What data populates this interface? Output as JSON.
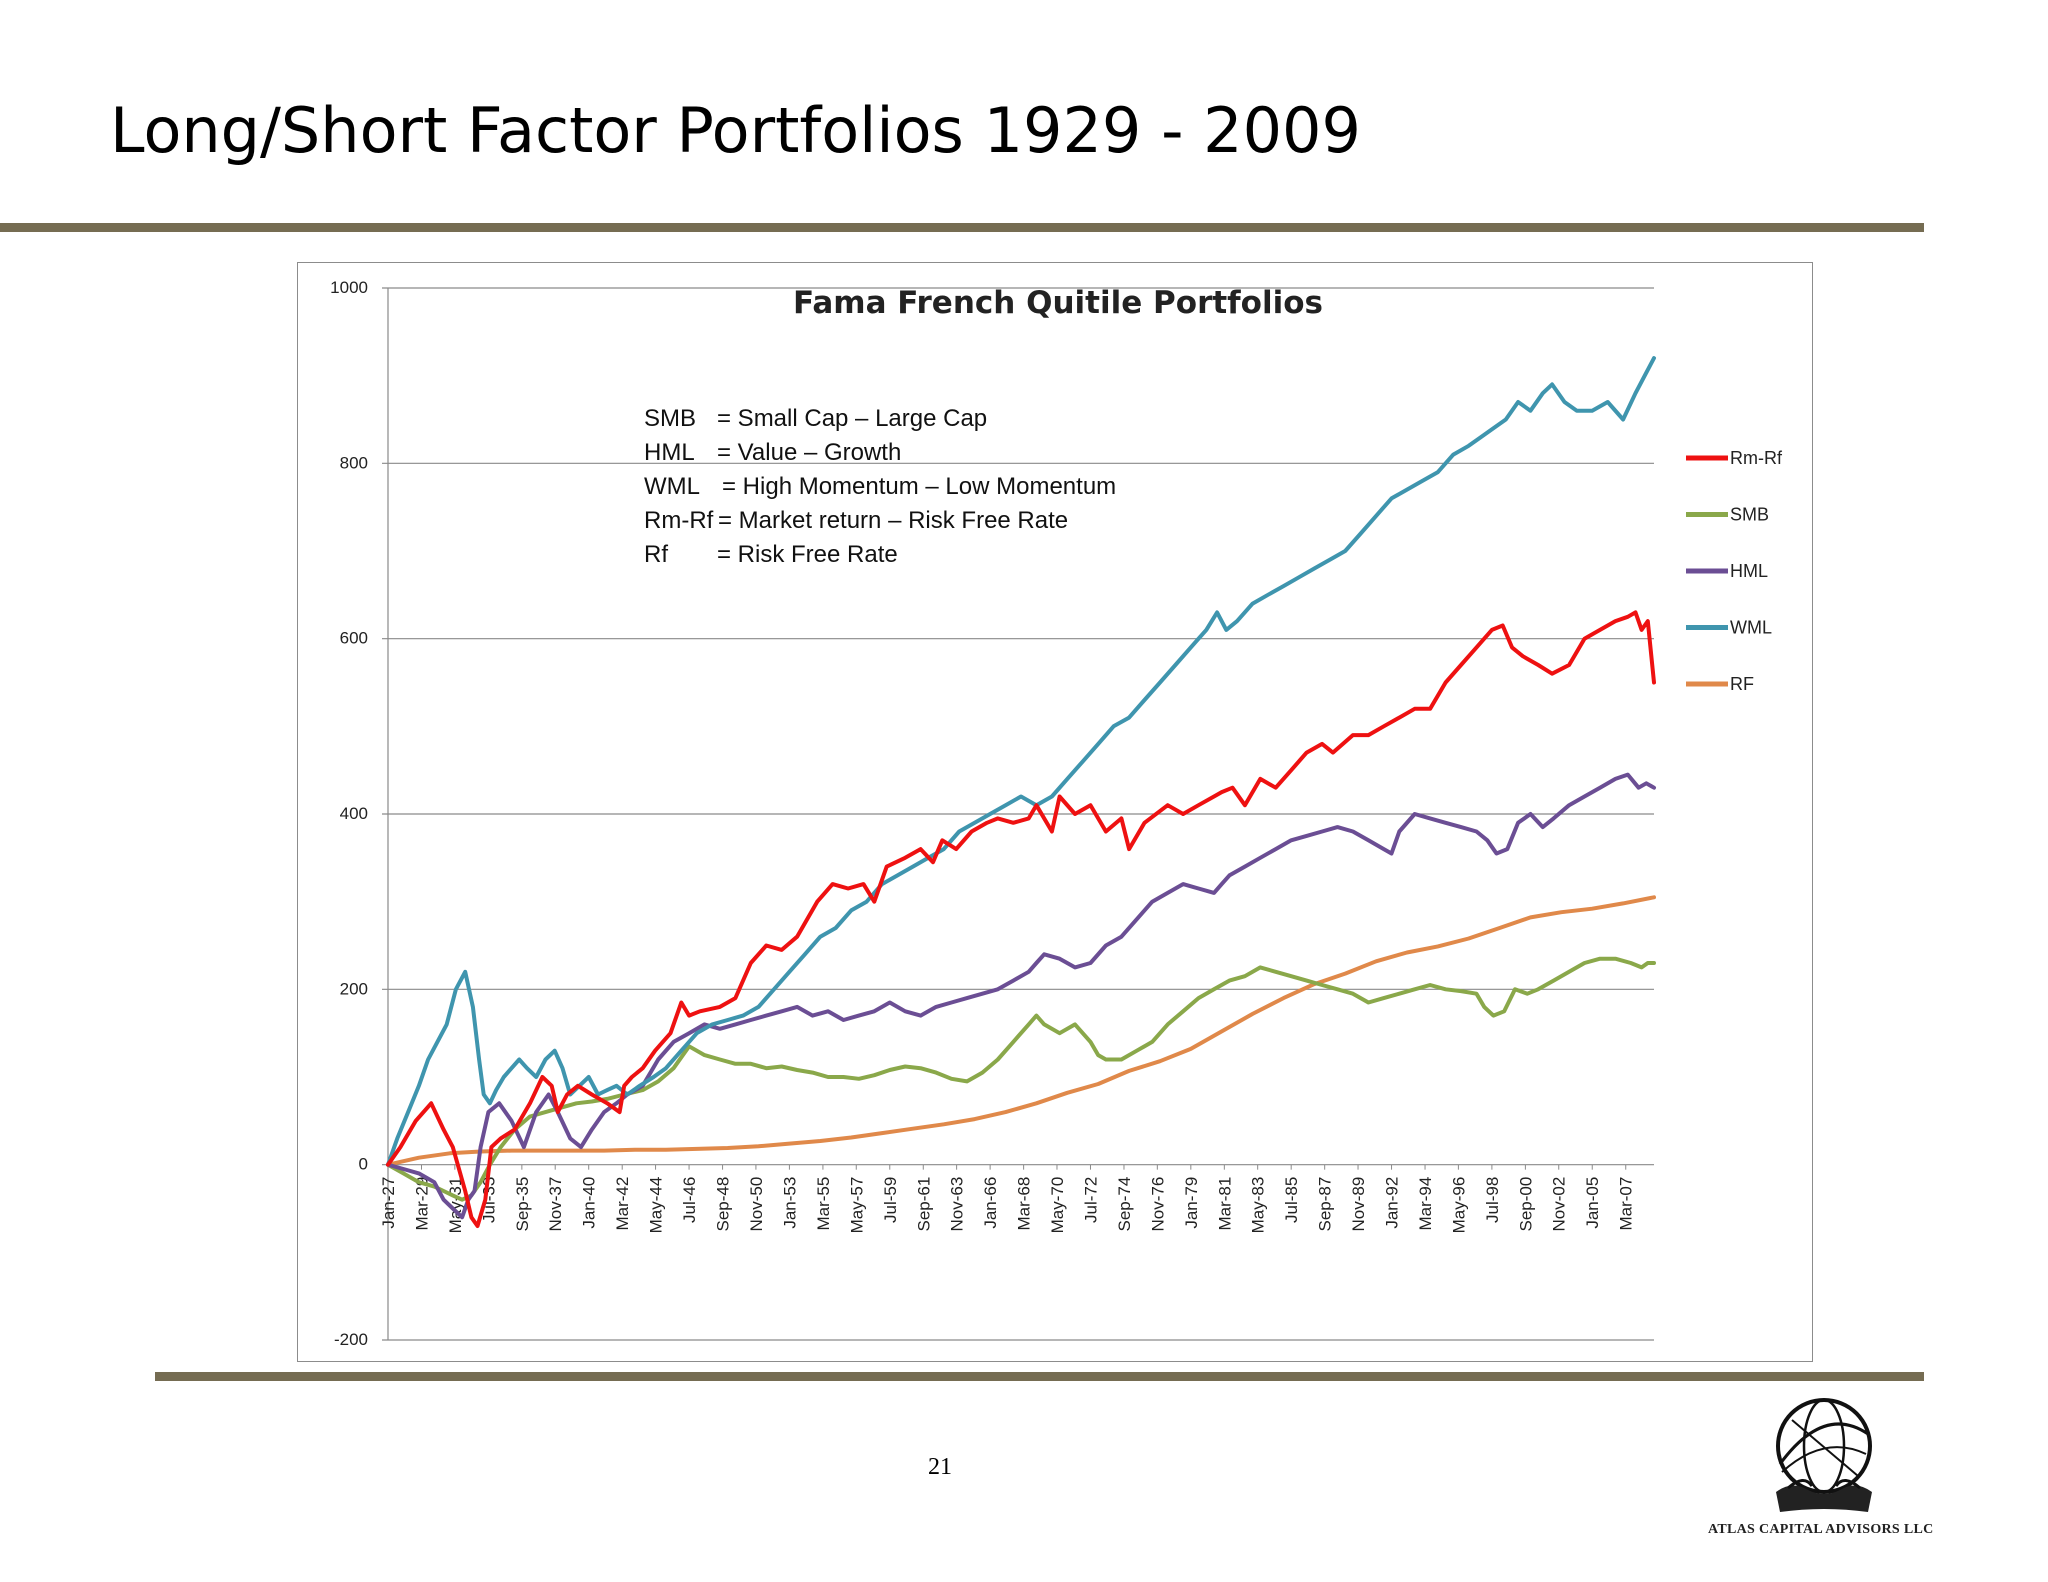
{
  "slide": {
    "title": "Long/Short Factor Portfolios 1929 - 2009",
    "page_number": "21",
    "company": "ATLAS CAPITAL ADVISORS LLC"
  },
  "colors": {
    "rule": "#756c52",
    "rm_rf": "#ee1111",
    "smb": "#8aa84a",
    "hml": "#6b4e94",
    "wml": "#3f95ae",
    "rf": "#e0894a"
  },
  "icons": {
    "logo": "globe-atlas-icon"
  },
  "chart_data": {
    "type": "line",
    "title": "Fama French Quitile Portfolios",
    "xlabel": "",
    "ylabel": "",
    "ylim": [
      -200,
      1000
    ],
    "yticks": [
      -200,
      0,
      200,
      400,
      600,
      800,
      1000
    ],
    "grid": true,
    "legend_position": "right",
    "definitions": [
      {
        "term": "SMB",
        "meaning": "= Small Cap – Large Cap"
      },
      {
        "term": "HML",
        "meaning": "= Value – Growth"
      },
      {
        "term": "WML",
        "meaning": "= High Momentum – Low Momentum"
      },
      {
        "term": "Rm-Rf",
        "meaning": "= Market return – Risk Free Rate"
      },
      {
        "term": "Rf",
        "meaning": "= Risk Free Rate"
      }
    ],
    "categories": [
      "Jan-27",
      "Mar-29",
      "May-31",
      "Jul-33",
      "Sep-35",
      "Nov-37",
      "Jan-40",
      "Mar-42",
      "May-44",
      "Jul-46",
      "Sep-48",
      "Nov-50",
      "Jan-53",
      "Mar-55",
      "May-57",
      "Jul-59",
      "Sep-61",
      "Nov-63",
      "Jan-66",
      "Mar-68",
      "May-70",
      "Jul-72",
      "Sep-74",
      "Nov-76",
      "Jan-79",
      "Mar-81",
      "May-83",
      "Jul-85",
      "Sep-87",
      "Nov-89",
      "Jan-92",
      "Mar-94",
      "May-96",
      "Jul-98",
      "Sep-00",
      "Nov-02",
      "Jan-05",
      "Mar-07"
    ],
    "x": [
      1927.0,
      1929.17,
      1931.33,
      1933.5,
      1935.67,
      1937.83,
      1940.0,
      1942.17,
      1944.33,
      1946.5,
      1948.67,
      1950.83,
      1953.0,
      1955.17,
      1957.33,
      1959.5,
      1961.67,
      1963.83,
      1966.0,
      1968.17,
      1970.33,
      1972.5,
      1974.67,
      1976.83,
      1979.0,
      1981.17,
      1983.33,
      1985.5,
      1987.67,
      1989.83,
      1992.0,
      1994.17,
      1996.33,
      1998.5,
      2000.67,
      2002.83,
      2005.0,
      2007.17
    ],
    "series": [
      {
        "name": "Rm-Rf",
        "x": [
          1927.0,
          1927.8,
          1928.8,
          1929.8,
          1930.6,
          1931.2,
          1932.0,
          1932.4,
          1932.8,
          1933.3,
          1933.7,
          1934.3,
          1935.2,
          1936.2,
          1937.0,
          1937.6,
          1938.0,
          1938.6,
          1939.3,
          1940.2,
          1941.2,
          1942.0,
          1942.3,
          1942.8,
          1943.5,
          1944.3,
          1945.3,
          1946.0,
          1946.5,
          1947.2,
          1948.5,
          1949.5,
          1950.5,
          1951.5,
          1952.5,
          1953.5,
          1954.8,
          1955.8,
          1956.8,
          1957.8,
          1958.5,
          1959.3,
          1960.5,
          1961.5,
          1962.3,
          1962.9,
          1963.8,
          1964.8,
          1965.8,
          1966.5,
          1967.5,
          1968.5,
          1969.0,
          1970.0,
          1970.5,
          1971.5,
          1972.5,
          1973.5,
          1974.5,
          1975.0,
          1976.0,
          1977.5,
          1978.5,
          1979.5,
          1980.5,
          1981.0,
          1981.7,
          1982.5,
          1983.5,
          1984.5,
          1985.5,
          1986.5,
          1987.5,
          1988.2,
          1989.5,
          1990.5,
          1991.5,
          1992.5,
          1993.5,
          1994.5,
          1995.5,
          1996.5,
          1997.5,
          1998.5,
          1999.2,
          1999.8,
          2000.5,
          2001.5,
          2002.4,
          2003.5,
          2004.5,
          2005.5,
          2006.5,
          2007.3,
          2007.8,
          2008.2,
          2008.6,
          2009.0
        ],
        "values": [
          0,
          20,
          50,
          70,
          40,
          20,
          -30,
          -60,
          -70,
          -40,
          20,
          30,
          40,
          70,
          100,
          90,
          60,
          80,
          90,
          80,
          70,
          60,
          90,
          100,
          110,
          130,
          150,
          185,
          170,
          175,
          180,
          190,
          230,
          250,
          245,
          260,
          300,
          320,
          315,
          320,
          300,
          340,
          350,
          360,
          345,
          370,
          360,
          380,
          390,
          395,
          390,
          395,
          410,
          380,
          420,
          400,
          410,
          380,
          395,
          360,
          390,
          410,
          400,
          410,
          420,
          425,
          430,
          410,
          440,
          430,
          450,
          470,
          480,
          470,
          490,
          490,
          500,
          510,
          520,
          520,
          550,
          570,
          590,
          610,
          615,
          590,
          580,
          570,
          560,
          570,
          600,
          610,
          620,
          625,
          630,
          610,
          620,
          550
        ]
      },
      {
        "name": "SMB",
        "x": [
          1927.0,
          1928.0,
          1929.0,
          1930.0,
          1930.6,
          1931.2,
          1931.8,
          1932.4,
          1933.0,
          1933.6,
          1934.3,
          1935.2,
          1936.2,
          1937.2,
          1938.2,
          1939.2,
          1940.2,
          1941.2,
          1942.3,
          1943.5,
          1944.5,
          1945.5,
          1946.5,
          1947.5,
          1948.5,
          1949.5,
          1950.5,
          1951.5,
          1952.5,
          1953.5,
          1954.5,
          1955.5,
          1956.5,
          1957.5,
          1958.5,
          1959.5,
          1960.5,
          1961.5,
          1962.5,
          1963.5,
          1964.5,
          1965.5,
          1966.5,
          1967.5,
          1968.5,
          1969.0,
          1969.5,
          1970.5,
          1971.5,
          1972.5,
          1973.0,
          1973.5,
          1974.5,
          1975.5,
          1976.5,
          1977.5,
          1978.5,
          1979.5,
          1980.5,
          1981.5,
          1982.5,
          1983.5,
          1984.5,
          1985.5,
          1986.5,
          1987.5,
          1988.5,
          1989.5,
          1990.5,
          1991.5,
          1992.5,
          1993.5,
          1994.5,
          1995.5,
          1996.5,
          1997.5,
          1998.0,
          1998.6,
          1999.3,
          2000.0,
          2000.8,
          2001.5,
          2002.5,
          2003.5,
          2004.5,
          2005.5,
          2006.5,
          2007.5,
          2008.2,
          2008.6,
          2009.0
        ],
        "values": [
          0,
          -10,
          -20,
          -25,
          -30,
          -35,
          -40,
          -35,
          -20,
          0,
          20,
          40,
          55,
          60,
          65,
          70,
          72,
          75,
          80,
          85,
          95,
          110,
          135,
          125,
          120,
          115,
          115,
          110,
          112,
          108,
          105,
          100,
          100,
          98,
          102,
          108,
          112,
          110,
          105,
          98,
          95,
          105,
          120,
          140,
          160,
          170,
          160,
          150,
          160,
          140,
          125,
          120,
          120,
          130,
          140,
          160,
          175,
          190,
          200,
          210,
          215,
          225,
          220,
          215,
          210,
          205,
          200,
          195,
          185,
          190,
          195,
          200,
          205,
          200,
          198,
          195,
          180,
          170,
          175,
          200,
          195,
          200,
          210,
          220,
          230,
          235,
          235,
          230,
          225,
          230,
          230
        ]
      },
      {
        "name": "HML",
        "x": [
          1927.0,
          1928.0,
          1929.0,
          1930.0,
          1930.6,
          1931.2,
          1931.8,
          1932.2,
          1932.6,
          1933.0,
          1933.5,
          1934.2,
          1935.0,
          1935.8,
          1936.6,
          1937.4,
          1938.0,
          1938.8,
          1939.5,
          1940.2,
          1941.0,
          1941.8,
          1942.5,
          1943.5,
          1944.5,
          1945.5,
          1946.5,
          1947.5,
          1948.5,
          1949.5,
          1950.5,
          1951.5,
          1952.5,
          1953.5,
          1954.5,
          1955.5,
          1956.5,
          1957.5,
          1958.5,
          1959.5,
          1960.5,
          1961.5,
          1962.5,
          1963.5,
          1964.5,
          1965.5,
          1966.5,
          1967.5,
          1968.5,
          1969.0,
          1969.5,
          1970.5,
          1971.5,
          1972.5,
          1973.5,
          1974.5,
          1975.5,
          1976.5,
          1977.5,
          1978.5,
          1979.5,
          1980.5,
          1981.0,
          1981.5,
          1982.5,
          1983.5,
          1984.5,
          1985.5,
          1986.5,
          1987.5,
          1988.5,
          1989.5,
          1990.5,
          1991.5,
          1992.0,
          1992.5,
          1993.5,
          1994.5,
          1995.5,
          1996.5,
          1997.5,
          1998.2,
          1998.8,
          1999.5,
          2000.2,
          2001.0,
          2001.8,
          2002.5,
          2003.5,
          2004.5,
          2005.5,
          2006.5,
          2007.3,
          2008.0,
          2008.5,
          2009.0
        ],
        "values": [
          0,
          -5,
          -10,
          -20,
          -40,
          -50,
          -60,
          -40,
          -30,
          20,
          60,
          70,
          50,
          20,
          60,
          80,
          60,
          30,
          20,
          40,
          60,
          70,
          80,
          90,
          120,
          140,
          150,
          160,
          155,
          160,
          165,
          170,
          175,
          180,
          170,
          175,
          165,
          170,
          175,
          185,
          175,
          170,
          180,
          185,
          190,
          195,
          200,
          210,
          220,
          230,
          240,
          235,
          225,
          230,
          250,
          260,
          280,
          300,
          310,
          320,
          315,
          310,
          320,
          330,
          340,
          350,
          360,
          370,
          375,
          380,
          385,
          380,
          370,
          360,
          355,
          380,
          400,
          395,
          390,
          385,
          380,
          370,
          355,
          360,
          390,
          400,
          385,
          395,
          410,
          420,
          430,
          440,
          445,
          430,
          435,
          430
        ]
      },
      {
        "name": "WML",
        "x": [
          1927.0,
          1927.6,
          1928.3,
          1929.0,
          1929.6,
          1930.2,
          1930.8,
          1931.4,
          1932.0,
          1932.5,
          1932.9,
          1933.2,
          1933.6,
          1934.0,
          1934.5,
          1935.0,
          1935.5,
          1936.0,
          1936.6,
          1937.2,
          1937.8,
          1938.3,
          1938.8,
          1939.4,
          1940.0,
          1940.6,
          1941.2,
          1941.8,
          1942.5,
          1943.3,
          1944.2,
          1945.0,
          1946.0,
          1947.0,
          1948.0,
          1949.0,
          1950.0,
          1951.0,
          1952.0,
          1953.0,
          1954.0,
          1955.0,
          1956.0,
          1957.0,
          1958.0,
          1959.0,
          1960.0,
          1961.0,
          1962.0,
          1963.0,
          1964.0,
          1965.0,
          1966.0,
          1967.0,
          1968.0,
          1969.0,
          1970.0,
          1971.0,
          1972.0,
          1973.0,
          1974.0,
          1975.0,
          1976.0,
          1977.0,
          1978.0,
          1979.0,
          1980.0,
          1980.7,
          1981.3,
          1982.0,
          1983.0,
          1984.0,
          1985.0,
          1986.0,
          1987.0,
          1988.0,
          1989.0,
          1990.0,
          1991.0,
          1992.0,
          1993.0,
          1994.0,
          1995.0,
          1996.0,
          1997.0,
          1997.8,
          1998.6,
          1999.4,
          2000.2,
          2001.0,
          2001.8,
          2002.4,
          2003.2,
          2004.0,
          2005.0,
          2006.0,
          2007.0,
          2007.8,
          2008.4,
          2009.0
        ],
        "values": [
          0,
          30,
          60,
          90,
          120,
          140,
          160,
          200,
          220,
          180,
          120,
          80,
          70,
          85,
          100,
          110,
          120,
          110,
          100,
          120,
          130,
          110,
          80,
          90,
          100,
          80,
          85,
          90,
          80,
          90,
          100,
          110,
          130,
          150,
          160,
          165,
          170,
          180,
          200,
          220,
          240,
          260,
          270,
          290,
          300,
          320,
          330,
          340,
          350,
          360,
          380,
          390,
          400,
          410,
          420,
          410,
          420,
          440,
          460,
          480,
          500,
          510,
          530,
          550,
          570,
          590,
          610,
          630,
          610,
          620,
          640,
          650,
          660,
          670,
          680,
          690,
          700,
          720,
          740,
          760,
          770,
          780,
          790,
          810,
          820,
          830,
          840,
          850,
          870,
          860,
          880,
          890,
          870,
          860,
          860,
          870,
          850,
          880,
          900,
          920
        ]
      },
      {
        "name": "RF",
        "x": [
          1927,
          1929,
          1931,
          1933,
          1935,
          1937,
          1939,
          1941,
          1943,
          1945,
          1947,
          1949,
          1951,
          1953,
          1955,
          1957,
          1959,
          1961,
          1963,
          1965,
          1967,
          1969,
          1971,
          1973,
          1975,
          1977,
          1979,
          1981,
          1983,
          1985,
          1987,
          1989,
          1991,
          1993,
          1995,
          1997,
          1999,
          2001,
          2003,
          2005,
          2007,
          2009
        ],
        "values": [
          0,
          8,
          13,
          15,
          16,
          16,
          16,
          16,
          17,
          17,
          18,
          19,
          21,
          24,
          27,
          31,
          36,
          41,
          46,
          52,
          60,
          70,
          82,
          92,
          107,
          118,
          132,
          152,
          172,
          190,
          206,
          218,
          232,
          242,
          249,
          258,
          270,
          282,
          288,
          292,
          298,
          305
        ]
      }
    ]
  }
}
